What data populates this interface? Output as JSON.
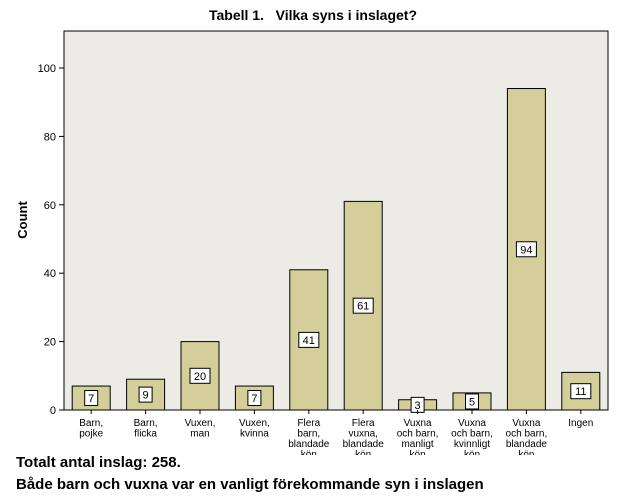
{
  "chart_data": {
    "type": "bar",
    "title": "Tabell 1.   Vilka syns i inslaget?",
    "xlabel": "",
    "ylabel": "Count",
    "ylim": [
      0,
      110
    ],
    "yticks": [
      0,
      20,
      40,
      60,
      80,
      100
    ],
    "grid": false,
    "legend": "none",
    "categories": [
      [
        "Barn,",
        "pojke"
      ],
      [
        "Barn,",
        "flicka"
      ],
      [
        "Vuxen,",
        "man"
      ],
      [
        "Vuxen,",
        "kvinna"
      ],
      [
        "Flera",
        "barn,",
        "blandade",
        "kön"
      ],
      [
        "Flera",
        "vuxna,",
        "blandade",
        "kön"
      ],
      [
        "Vuxna",
        "och barn,",
        "manligt",
        "kön"
      ],
      [
        "Vuxna",
        "och barn,",
        "kvinnligt",
        "kön"
      ],
      [
        "Vuxna",
        "och barn,",
        "blandade",
        "kön"
      ],
      [
        "Ingen"
      ]
    ],
    "values": [
      7,
      9,
      20,
      7,
      41,
      61,
      3,
      5,
      94,
      11
    ],
    "data_labels": [
      "7",
      "9",
      "20",
      "7",
      "41",
      "61",
      "3",
      "5",
      "94",
      "11"
    ],
    "colors": {
      "bar_fill": "#d3ce9a",
      "bar_stroke": "#000000",
      "plot_background": "#ecebe6"
    }
  },
  "footnotes": {
    "line1": "Totalt antal inslag: 258.",
    "line2": "Både barn och vuxna var en vanligt förekommande syn i inslagen"
  }
}
